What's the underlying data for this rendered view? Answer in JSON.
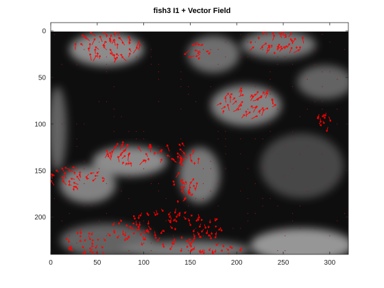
{
  "figure": {
    "title": "fish3 I1 + Vector Field"
  },
  "chart_data": {
    "type": "image",
    "title": "fish3 I1 + Vector Field",
    "xlim": [
      0,
      320
    ],
    "ylim": [
      0,
      240
    ],
    "y_reversed": true,
    "grid": false,
    "x_ticks": [
      0,
      50,
      100,
      150,
      200,
      250,
      300
    ],
    "y_ticks": [
      0,
      50,
      100,
      150,
      200
    ],
    "image_colormap": "gray",
    "vector_color": "#ff0000",
    "bright_regions": [
      {
        "x": 60,
        "y": 20,
        "rx": 40,
        "ry": 18,
        "level": 0.55
      },
      {
        "x": 175,
        "y": 25,
        "rx": 28,
        "ry": 20,
        "level": 0.4
      },
      {
        "x": 245,
        "y": 15,
        "rx": 40,
        "ry": 15,
        "level": 0.45
      },
      {
        "x": 210,
        "y": 80,
        "rx": 38,
        "ry": 22,
        "level": 0.5
      },
      {
        "x": 295,
        "y": 55,
        "rx": 30,
        "ry": 18,
        "level": 0.35
      },
      {
        "x": 85,
        "y": 140,
        "rx": 40,
        "ry": 16,
        "level": 0.55
      },
      {
        "x": 160,
        "y": 155,
        "rx": 22,
        "ry": 30,
        "level": 0.45
      },
      {
        "x": 40,
        "y": 165,
        "rx": 30,
        "ry": 20,
        "level": 0.5
      },
      {
        "x": 7,
        "y": 105,
        "rx": 10,
        "ry": 45,
        "level": 0.35
      },
      {
        "x": 270,
        "y": 145,
        "rx": 45,
        "ry": 35,
        "level": 0.2
      },
      {
        "x": 60,
        "y": 225,
        "rx": 50,
        "ry": 18,
        "level": 0.35
      },
      {
        "x": 270,
        "y": 230,
        "rx": 55,
        "ry": 18,
        "level": 0.6
      },
      {
        "x": 145,
        "y": 235,
        "rx": 70,
        "ry": 10,
        "level": 0.45
      }
    ],
    "vector_clusters": [
      {
        "x": 60,
        "y": 20,
        "rx": 35,
        "ry": 16,
        "angle": -100,
        "mag": 9
      },
      {
        "x": 160,
        "y": 20,
        "rx": 14,
        "ry": 10,
        "angle": 160,
        "mag": 8
      },
      {
        "x": 240,
        "y": 15,
        "rx": 35,
        "ry": 12,
        "angle": -70,
        "mag": 8
      },
      {
        "x": 210,
        "y": 80,
        "rx": 32,
        "ry": 15,
        "angle": -60,
        "mag": 9
      },
      {
        "x": 90,
        "y": 135,
        "rx": 35,
        "ry": 12,
        "angle": -80,
        "mag": 9
      },
      {
        "x": 145,
        "y": 135,
        "rx": 20,
        "ry": 12,
        "angle": -110,
        "mag": 9
      },
      {
        "x": 145,
        "y": 170,
        "rx": 14,
        "ry": 20,
        "angle": -90,
        "mag": 8
      },
      {
        "x": 20,
        "y": 160,
        "rx": 20,
        "ry": 14,
        "angle": -130,
        "mag": 8
      },
      {
        "x": 48,
        "y": 158,
        "rx": 12,
        "ry": 8,
        "angle": 160,
        "mag": 8
      },
      {
        "x": 295,
        "y": 95,
        "rx": 10,
        "ry": 12,
        "angle": 100,
        "mag": 7
      },
      {
        "x": 125,
        "y": 210,
        "rx": 60,
        "ry": 20,
        "angle": 90,
        "mag": 6
      },
      {
        "x": 165,
        "y": 235,
        "rx": 45,
        "ry": 7,
        "angle": 80,
        "mag": 6
      },
      {
        "x": 40,
        "y": 225,
        "rx": 25,
        "ry": 15,
        "angle": 90,
        "mag": 6
      }
    ]
  }
}
